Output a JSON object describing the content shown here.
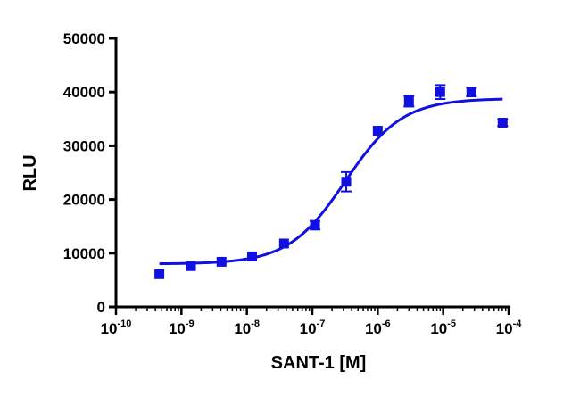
{
  "chart_data": {
    "type": "scatter",
    "title": "",
    "xlabel": "SANT-1 [M]",
    "ylabel": "RLU",
    "x_scale": "log",
    "xlim": [
      1e-10,
      0.0001
    ],
    "ylim": [
      0,
      50000
    ],
    "grid": false,
    "x_tick_labels": [
      {
        "value": 1e-10,
        "base": "10",
        "exp": "-10"
      },
      {
        "value": 1e-09,
        "base": "10",
        "exp": "-9"
      },
      {
        "value": 1e-08,
        "base": "10",
        "exp": "-8"
      },
      {
        "value": 1e-07,
        "base": "10",
        "exp": "-7"
      },
      {
        "value": 1e-06,
        "base": "10",
        "exp": "-6"
      },
      {
        "value": 1e-05,
        "base": "10",
        "exp": "-5"
      },
      {
        "value": 0.0001,
        "base": "10",
        "exp": "-4"
      }
    ],
    "y_ticks": [
      0,
      10000,
      20000,
      30000,
      40000,
      50000
    ],
    "color": "#1010e0",
    "points": [
      {
        "x": 4.6e-10,
        "y": 6100,
        "err": 0
      },
      {
        "x": 1.4e-09,
        "y": 7600,
        "err": 0
      },
      {
        "x": 4.1e-09,
        "y": 8400,
        "err": 0
      },
      {
        "x": 1.2e-08,
        "y": 9400,
        "err": 0
      },
      {
        "x": 3.7e-08,
        "y": 11800,
        "err": 0
      },
      {
        "x": 1.1e-07,
        "y": 15200,
        "err": 800
      },
      {
        "x": 3.3e-07,
        "y": 23300,
        "err": 1800
      },
      {
        "x": 1e-06,
        "y": 32800,
        "err": 0
      },
      {
        "x": 3e-06,
        "y": 38300,
        "err": 1000
      },
      {
        "x": 9e-06,
        "y": 40000,
        "err": 1300
      },
      {
        "x": 2.7e-05,
        "y": 40000,
        "err": 800
      },
      {
        "x": 8.1e-05,
        "y": 34300,
        "err": 600
      }
    ],
    "fit": {
      "model": "sigmoidal dose-response",
      "bottom": 8000,
      "top": 38800,
      "ec50": 3.2e-07,
      "hill": 1.0,
      "x_range": [
        4.6e-10,
        8.1e-05
      ]
    }
  }
}
